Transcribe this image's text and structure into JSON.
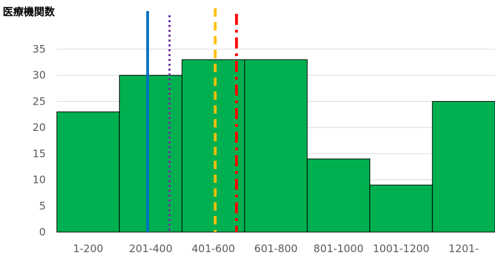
{
  "chart_data": {
    "type": "bar",
    "ylabel": "医療機関数",
    "categories": [
      "1-200",
      "201-400",
      "401-600",
      "601-800",
      "801-1000",
      "1001-1200",
      "1201-"
    ],
    "values": [
      23,
      30,
      33,
      33,
      14,
      9,
      25
    ],
    "ylim": [
      0,
      35
    ],
    "yticks": [
      0,
      5,
      10,
      15,
      20,
      25,
      30,
      35
    ],
    "grid": true,
    "bar_color": "#00b050",
    "bar_edge_color": "#000000",
    "reference_lines": [
      {
        "style": "solid",
        "color": "#0070c0",
        "x_value": 1.45
      },
      {
        "style": "dotted",
        "color": "#7030a0",
        "x_value": 1.8
      },
      {
        "style": "dashed",
        "color": "#ffc000",
        "x_value": 2.53
      },
      {
        "style": "dashdot",
        "color": "#ff0000",
        "x_value": 2.87
      }
    ]
  }
}
